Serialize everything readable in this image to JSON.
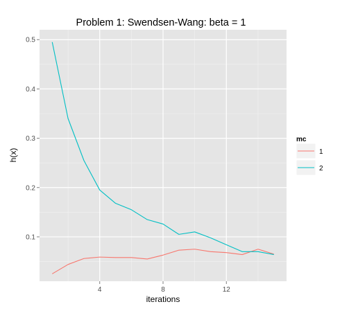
{
  "chart_data": {
    "type": "line",
    "title": "Problem 1: Swendsen-Wang: beta = 1",
    "xlabel": "iterations",
    "ylabel": "h(x)",
    "xlim": [
      0.2,
      15.8
    ],
    "ylim": [
      0.01,
      0.52
    ],
    "x_ticks": [
      4,
      8,
      12
    ],
    "y_ticks": [
      0.1,
      0.2,
      0.3,
      0.4,
      0.5
    ],
    "x_tick_labels": [
      "4",
      "8",
      "12"
    ],
    "y_tick_labels": [
      "0.1",
      "0.2",
      "0.3",
      "0.4",
      "0.5"
    ],
    "grid": true,
    "legend": {
      "title": "mc",
      "position": "right",
      "entries": [
        {
          "label": "1",
          "color": "#F8766D"
        },
        {
          "label": "2",
          "color": "#00BFC4"
        }
      ]
    },
    "x": [
      1,
      2,
      3,
      4,
      5,
      6,
      7,
      8,
      9,
      10,
      11,
      12,
      13,
      14,
      15
    ],
    "series": [
      {
        "name": "1",
        "color": "#F8766D",
        "values": [
          0.025,
          0.044,
          0.056,
          0.059,
          0.058,
          0.058,
          0.055,
          0.063,
          0.073,
          0.075,
          0.07,
          0.068,
          0.064,
          0.075,
          0.065
        ]
      },
      {
        "name": "2",
        "color": "#00BFC4",
        "values": [
          0.495,
          0.34,
          0.255,
          0.195,
          0.168,
          0.155,
          0.135,
          0.126,
          0.105,
          0.11,
          0.098,
          0.084,
          0.07,
          0.07,
          0.064
        ]
      }
    ]
  }
}
